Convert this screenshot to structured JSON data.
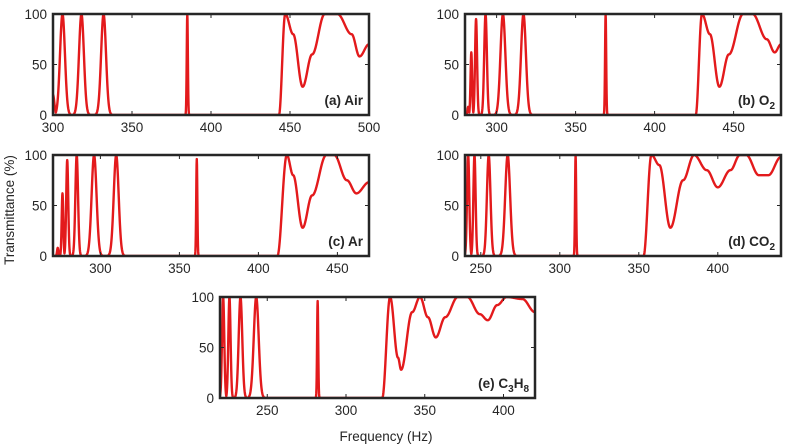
{
  "figure": {
    "ylabel": "Transmittance (%)",
    "xlabel": "Frequency (Hz)",
    "line_color": "#e31a1c"
  },
  "chart_data": [
    {
      "type": "line",
      "label_parts": [
        {
          "t": "(a) Air",
          "sub": false
        }
      ],
      "xlim": [
        300,
        500
      ],
      "ylim": [
        0,
        100
      ],
      "xticks": [
        300,
        350,
        400,
        450,
        500
      ],
      "yticks": [
        0,
        50,
        100
      ],
      "narrow_peaks": [
        [
          300,
          20,
          1.2
        ],
        [
          306,
          100,
          2.2
        ],
        [
          318,
          100,
          2.2
        ],
        [
          332,
          100,
          2.2
        ],
        [
          385,
          100,
          0.5
        ]
      ],
      "band_edge": 443,
      "band_points": [
        [
          443,
          0
        ],
        [
          447,
          100
        ],
        [
          452,
          80
        ],
        [
          458,
          28
        ],
        [
          464,
          60
        ],
        [
          472,
          100
        ],
        [
          480,
          100
        ],
        [
          489,
          80
        ],
        [
          494,
          58
        ],
        [
          500,
          70
        ]
      ]
    },
    {
      "type": "line",
      "label_parts": [
        {
          "t": "(b) O",
          "sub": false
        },
        {
          "t": "2",
          "sub": true
        }
      ],
      "xlim": [
        280,
        480
      ],
      "ylim": [
        0,
        100
      ],
      "xticks": [
        300,
        350,
        400,
        450
      ],
      "yticks": [
        0,
        50,
        100
      ],
      "narrow_peaks": [
        [
          282,
          8,
          0.6
        ],
        [
          284,
          62,
          0.7
        ],
        [
          287,
          95,
          0.9
        ],
        [
          293,
          100,
          1.2
        ],
        [
          304,
          100,
          2.2
        ],
        [
          317,
          100,
          2.2
        ],
        [
          369,
          100,
          0.5
        ]
      ],
      "band_edge": 426,
      "band_points": [
        [
          426,
          0
        ],
        [
          430,
          100
        ],
        [
          435,
          80
        ],
        [
          441,
          28
        ],
        [
          447,
          60
        ],
        [
          456,
          100
        ],
        [
          462,
          100
        ],
        [
          471,
          75
        ],
        [
          476,
          62
        ],
        [
          480,
          70
        ]
      ]
    },
    {
      "type": "line",
      "label_parts": [
        {
          "t": "(c) Ar",
          "sub": false
        }
      ],
      "xlim": [
        270,
        470
      ],
      "ylim": [
        0,
        100
      ],
      "xticks": [
        300,
        350,
        400,
        450
      ],
      "yticks": [
        0,
        50,
        100
      ],
      "narrow_peaks": [
        [
          273,
          8,
          0.6
        ],
        [
          276,
          62,
          0.7
        ],
        [
          279,
          95,
          0.9
        ],
        [
          285,
          100,
          1.2
        ],
        [
          296,
          100,
          2.2
        ],
        [
          310,
          100,
          2.2
        ],
        [
          361,
          96,
          0.5
        ]
      ],
      "band_edge": 412,
      "band_points": [
        [
          412,
          0
        ],
        [
          418,
          100
        ],
        [
          422,
          80
        ],
        [
          428,
          28
        ],
        [
          434,
          60
        ],
        [
          443,
          100
        ],
        [
          448,
          100
        ],
        [
          456,
          75
        ],
        [
          462,
          62
        ],
        [
          470,
          73
        ]
      ]
    },
    {
      "type": "line",
      "label_parts": [
        {
          "t": "(d) CO",
          "sub": false
        },
        {
          "t": "2",
          "sub": true
        }
      ],
      "xlim": [
        240,
        440
      ],
      "ylim": [
        0,
        100
      ],
      "xticks": [
        250,
        300,
        350,
        400
      ],
      "yticks": [
        0,
        50,
        100
      ],
      "narrow_peaks": [
        [
          242,
          100,
          1.0
        ],
        [
          246,
          100,
          1.0
        ],
        [
          255,
          100,
          1.6
        ],
        [
          267,
          100,
          2.2
        ],
        [
          310,
          100,
          0.5
        ]
      ],
      "band_edge": 353,
      "band_points": [
        [
          353,
          0
        ],
        [
          358,
          100
        ],
        [
          363,
          90
        ],
        [
          370,
          28
        ],
        [
          378,
          75
        ],
        [
          385,
          100
        ],
        [
          393,
          85
        ],
        [
          400,
          68
        ],
        [
          408,
          85
        ],
        [
          414,
          100
        ],
        [
          418,
          100
        ],
        [
          426,
          80
        ],
        [
          432,
          80
        ],
        [
          440,
          98
        ]
      ]
    },
    {
      "type": "line",
      "label_parts": [
        {
          "t": "(e) C",
          "sub": false
        },
        {
          "t": "3",
          "sub": true
        },
        {
          "t": "H",
          "sub": false
        },
        {
          "t": "8",
          "sub": true
        }
      ],
      "xlim": [
        220,
        420
      ],
      "ylim": [
        0,
        100
      ],
      "xticks": [
        250,
        300,
        350,
        400
      ],
      "yticks": [
        0,
        50,
        100
      ],
      "narrow_peaks": [
        [
          222,
          100,
          1.0
        ],
        [
          226,
          100,
          1.0
        ],
        [
          233,
          100,
          1.6
        ],
        [
          243,
          100,
          2.2
        ],
        [
          282,
          96,
          0.5
        ]
      ],
      "band_edge": 323,
      "band_points": [
        [
          323,
          0
        ],
        [
          328,
          100
        ],
        [
          333,
          40
        ],
        [
          335,
          28
        ],
        [
          342,
          85
        ],
        [
          347,
          100
        ],
        [
          352,
          80
        ],
        [
          357,
          60
        ],
        [
          363,
          80
        ],
        [
          371,
          100
        ],
        [
          377,
          100
        ],
        [
          385,
          83
        ],
        [
          390,
          77
        ],
        [
          396,
          92
        ],
        [
          402,
          100
        ],
        [
          412,
          98
        ],
        [
          420,
          85
        ]
      ]
    }
  ]
}
